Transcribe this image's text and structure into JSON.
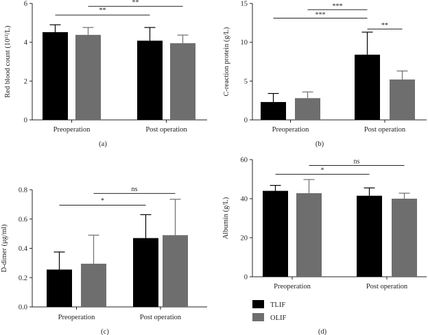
{
  "chart_data": [
    {
      "id": "a",
      "type": "bar",
      "panel_label": "(a)",
      "ylabel": "Red blood count (10¹²/L)",
      "ylim": [
        0,
        6
      ],
      "yticks": [
        0,
        2,
        4,
        6
      ],
      "categories": [
        "Preoperation",
        "Post operation"
      ],
      "series": [
        {
          "name": "TLIF",
          "values": [
            4.52,
            4.08
          ],
          "errors": [
            0.38,
            0.68
          ]
        },
        {
          "name": "OLIF",
          "values": [
            4.38,
            3.95
          ],
          "errors": [
            0.38,
            0.42
          ]
        }
      ],
      "significance": [
        {
          "label": "**",
          "from": [
            0,
            0
          ],
          "to": [
            1,
            0
          ],
          "y": 5.4,
          "text_y": 5.55
        },
        {
          "label": "**",
          "from": [
            0,
            1
          ],
          "to": [
            1,
            1
          ],
          "y": 5.85,
          "text_y": 5.95
        }
      ]
    },
    {
      "id": "b",
      "type": "bar",
      "panel_label": "(b)",
      "ylabel": "C-reaction protein (g/L)",
      "ylim": [
        0,
        15
      ],
      "yticks": [
        0,
        5,
        10,
        15
      ],
      "categories": [
        "Preoperation",
        "Post operation"
      ],
      "series": [
        {
          "name": "TLIF",
          "values": [
            2.3,
            8.4
          ],
          "errors": [
            1.1,
            2.9
          ]
        },
        {
          "name": "OLIF",
          "values": [
            2.8,
            5.2
          ],
          "errors": [
            0.8,
            1.1
          ]
        }
      ],
      "significance": [
        {
          "label": "***",
          "from": [
            0,
            0
          ],
          "to": [
            1,
            0
          ],
          "y": 13.1,
          "text_y": 13.3
        },
        {
          "label": "***",
          "from": [
            0,
            1
          ],
          "to": [
            1,
            0
          ],
          "y": 14.2,
          "text_y": 14.4
        },
        {
          "label": "**",
          "from": [
            1,
            0
          ],
          "to": [
            1,
            1
          ],
          "y": 11.7,
          "text_y": 11.9
        }
      ]
    },
    {
      "id": "c",
      "type": "bar",
      "panel_label": "(c)",
      "ylabel": "D-dimer (μg/ml)",
      "ylim": [
        0,
        0.8
      ],
      "yticks": [
        0.0,
        0.2,
        0.4,
        0.6,
        0.8
      ],
      "categories": [
        "Preoperation",
        "Post operation"
      ],
      "series": [
        {
          "name": "TLIF",
          "values": [
            0.255,
            0.47
          ],
          "errors": [
            0.12,
            0.16
          ]
        },
        {
          "name": "OLIF",
          "values": [
            0.295,
            0.49
          ],
          "errors": [
            0.195,
            0.245
          ]
        }
      ],
      "significance": [
        {
          "label": "*",
          "from": [
            0,
            0
          ],
          "to": [
            1,
            0
          ],
          "y": 0.695,
          "text_y": 0.71
        },
        {
          "label": "ns",
          "from": [
            0,
            1
          ],
          "to": [
            1,
            1
          ],
          "y": 0.775,
          "text_y": 0.79
        }
      ]
    },
    {
      "id": "d",
      "type": "bar",
      "panel_label": "(d)",
      "ylabel": "Albumin (g/L)",
      "ylim": [
        0,
        60
      ],
      "yticks": [
        0,
        20,
        40,
        60
      ],
      "categories": [
        "Preoperation",
        "Post operation"
      ],
      "series": [
        {
          "name": "TLIF",
          "values": [
            44,
            41.5
          ],
          "errors": [
            2.8,
            4.0
          ]
        },
        {
          "name": "OLIF",
          "values": [
            42.8,
            40.0
          ],
          "errors": [
            7.0,
            2.8
          ]
        }
      ],
      "significance": [
        {
          "label": "*",
          "from": [
            0,
            0
          ],
          "to": [
            1,
            0
          ],
          "y": 52.5,
          "text_y": 53.5
        },
        {
          "label": "ns",
          "from": [
            0,
            1
          ],
          "to": [
            1,
            1
          ],
          "y": 57,
          "text_y": 58
        }
      ]
    }
  ],
  "legend": [
    {
      "name": "TLIF",
      "color": "#000000"
    },
    {
      "name": "OLIF",
      "color": "#6e6e6e"
    }
  ],
  "colors": {
    "TLIF": "#000000",
    "OLIF": "#6e6e6e",
    "axis": "#222222"
  }
}
